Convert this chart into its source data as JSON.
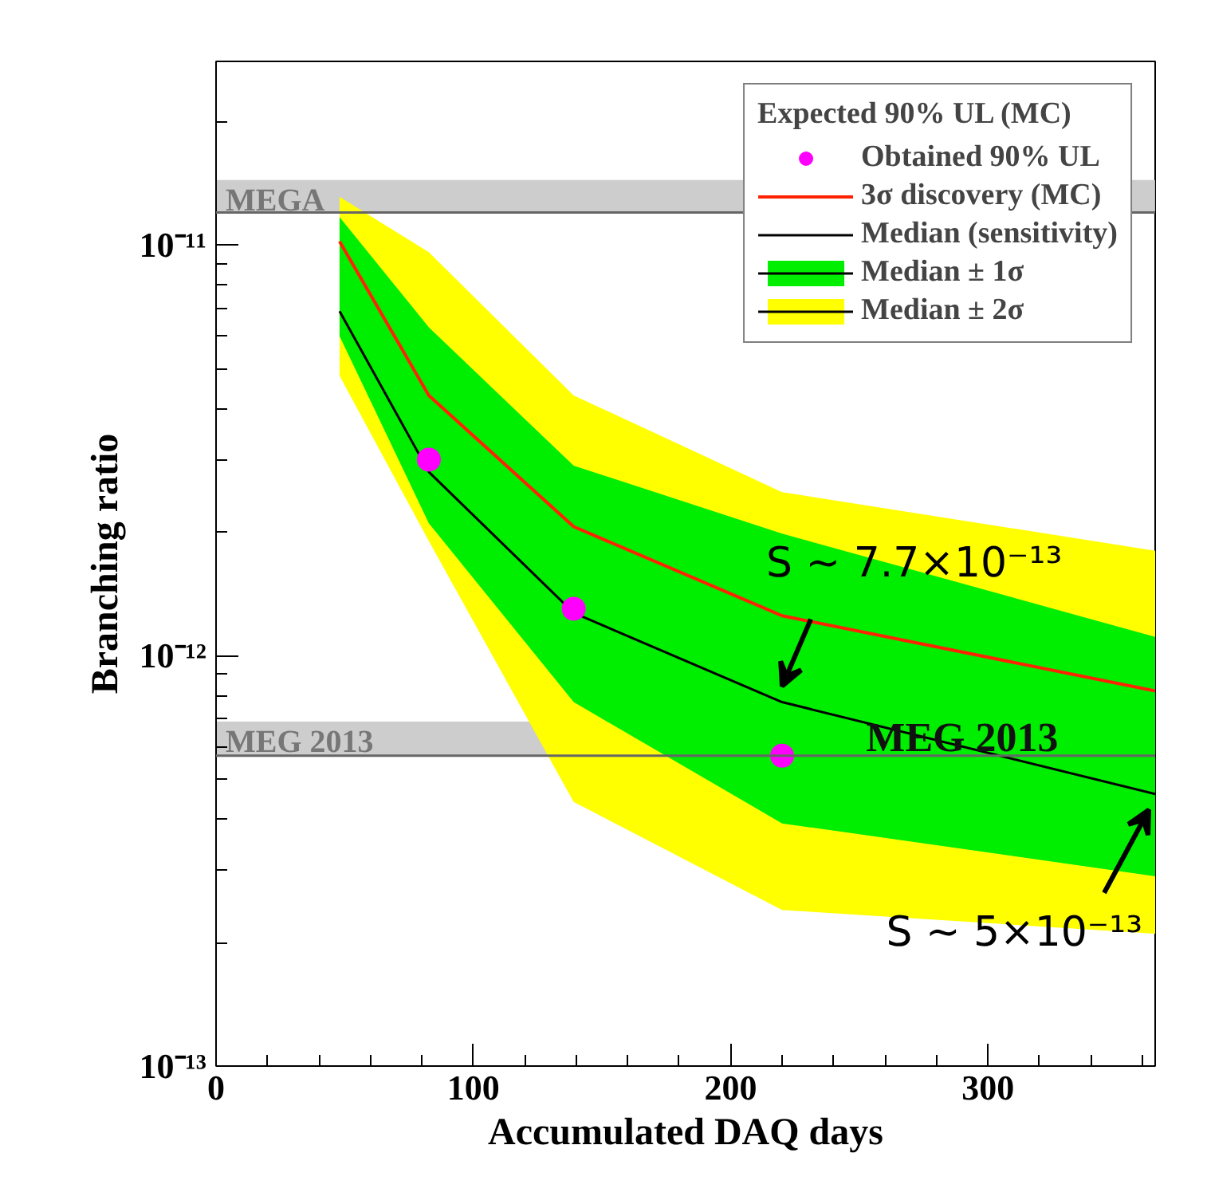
{
  "chart_data": {
    "type": "line",
    "xlabel": "Accumulated DAQ days",
    "ylabel": "Branching ratio",
    "log": "y",
    "grid": false,
    "legend": "top right",
    "xlim": [
      0,
      365
    ],
    "ylim": [
      1e-13,
      2.8e-11
    ],
    "xticks": [
      0,
      100,
      200,
      300
    ],
    "yticks": [
      {
        "value": 1e-13,
        "label": "10⁻¹³"
      },
      {
        "value": 1e-12,
        "label": "10⁻¹²"
      },
      {
        "value": 1e-11,
        "label": "10⁻¹¹"
      }
    ],
    "series": [
      {
        "name": "Median ± 2σ",
        "type": "area",
        "color": "#ffff00",
        "x": [
          48,
          82.7,
          139,
          220,
          365
        ],
        "values": [
          null,
          null,
          null,
          null,
          null
        ],
        "lower": [
          4.8e-12,
          1.9e-12,
          4.4e-13,
          2.4e-13,
          2.1e-13
        ],
        "upper": [
          1.31e-11,
          9.6e-12,
          4.3e-12,
          2.5e-12,
          1.8e-12
        ]
      },
      {
        "name": "Median ± 1σ",
        "type": "area",
        "color": "#00ee00",
        "x": [
          48,
          82.7,
          139,
          220,
          365
        ],
        "values": [
          null,
          null,
          null,
          null,
          null
        ],
        "lower": [
          6e-12,
          2.1e-12,
          7.7e-13,
          3.9e-13,
          2.9e-13
        ],
        "upper": [
          1.17e-11,
          6.3e-12,
          2.9e-12,
          1.98e-12,
          1.11e-12
        ]
      },
      {
        "name": "Median (sensitivity)",
        "color": "#000000",
        "x": [
          48,
          82.7,
          139,
          220,
          365
        ],
        "values": [
          6.9e-12,
          2.8e-12,
          1.27e-12,
          7.7e-13,
          4.6e-13
        ]
      },
      {
        "name": "3σ discovery (MC)",
        "color": "#ff2200",
        "x": [
          48,
          82.7,
          139,
          220,
          365
        ],
        "values": [
          1.02e-11,
          4.3e-12,
          2.06e-12,
          1.25e-12,
          8.2e-13
        ]
      },
      {
        "name": "Obtained 90% UL",
        "type": "scatter",
        "marker": "circle",
        "color": "#ff00ff",
        "x": [
          82.7,
          139,
          220
        ],
        "values": [
          3e-12,
          1.3e-12,
          5.7e-13
        ]
      }
    ],
    "legend_title": "Expected 90% UL (MC)",
    "ref_lines": [
      {
        "axis": "y",
        "value": 1.2e-11,
        "color": "#666666"
      },
      {
        "axis": "y",
        "value": 5.7e-13,
        "color": "#666666"
      }
    ],
    "bands": [
      {
        "axis": "y",
        "from": 1.2e-11,
        "to": 1.44e-11,
        "label": "MEGA",
        "color": "#c8c8c8"
      },
      {
        "axis": "y",
        "from": 5.7e-13,
        "to": 6.9e-13,
        "label": "MEG 2013",
        "color": "#c8c8c8"
      }
    ],
    "annotations": [
      {
        "text": "MEG 2013",
        "x": 290,
        "y": 6.3e-13
      },
      {
        "text": "S ~ 7.7×10⁻¹³",
        "x": 220,
        "y": 7.7e-13
      },
      {
        "text": "S ~ 5×10⁻¹³",
        "x": 365,
        "y": 4.6e-13
      }
    ]
  }
}
